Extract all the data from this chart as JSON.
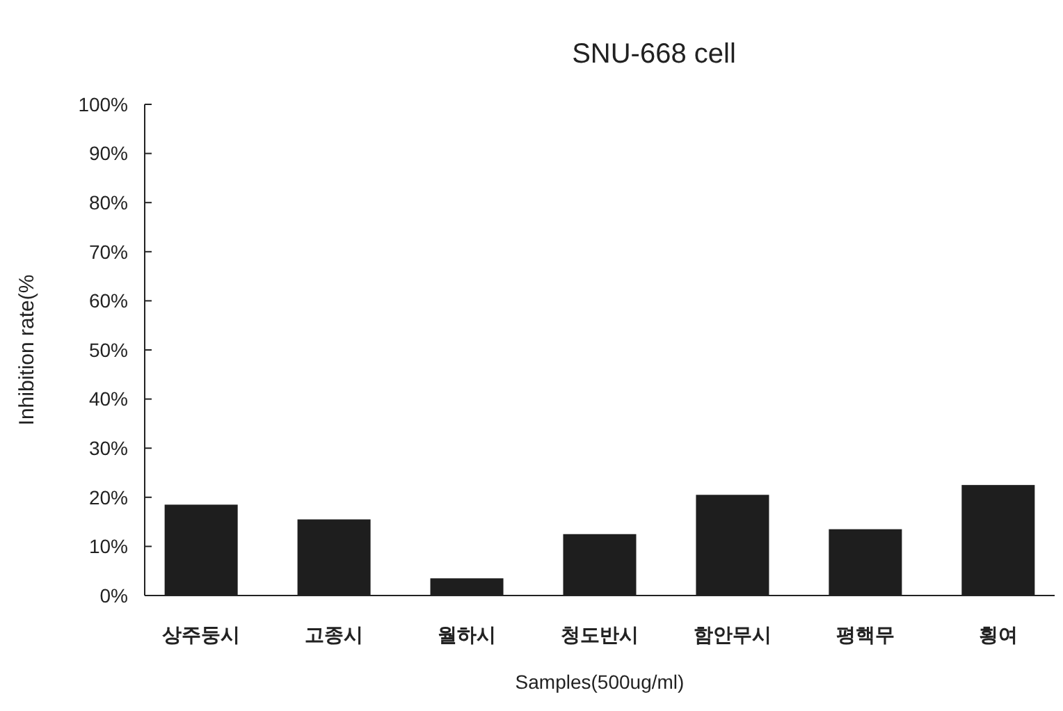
{
  "chart_data": {
    "type": "bar",
    "title": "SNU-668 cell",
    "xlabel": "Samples(500ug/ml)",
    "ylabel": "Inhibition rate(%",
    "categories": [
      "상주둥시",
      "고종시",
      "월하시",
      "청도반시",
      "함안무시",
      "평핵무",
      "횡여"
    ],
    "values": [
      18.5,
      15.5,
      3.5,
      12.5,
      20.5,
      13.5,
      22.5
    ],
    "color": "#1e1e1e",
    "ylim": [
      0,
      100
    ],
    "yticks": [
      {
        "value": 0,
        "label": "0%"
      },
      {
        "value": 10,
        "label": "10%"
      },
      {
        "value": 20,
        "label": "20%"
      },
      {
        "value": 30,
        "label": "30%"
      },
      {
        "value": 40,
        "label": "40%"
      },
      {
        "value": 50,
        "label": "50%"
      },
      {
        "value": 60,
        "label": "60%"
      },
      {
        "value": 70,
        "label": "70%"
      },
      {
        "value": 80,
        "label": "80%"
      },
      {
        "value": 90,
        "label": "90%"
      },
      {
        "value": 100,
        "label": "100%"
      }
    ],
    "grid": false
  }
}
